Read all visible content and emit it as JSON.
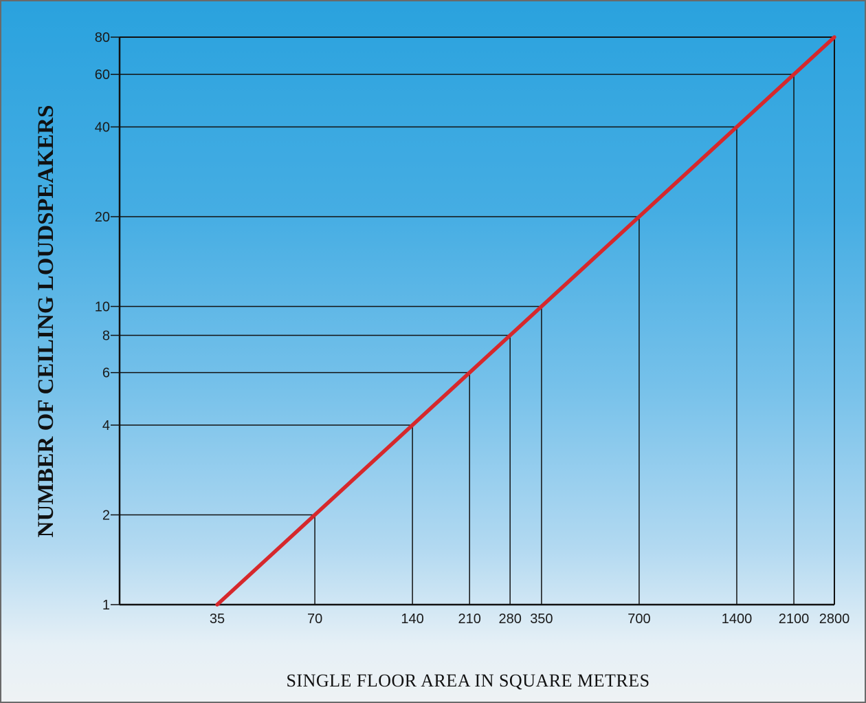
{
  "chart_data": {
    "type": "line",
    "xlabel": "SINGLE FLOOR AREA IN SQUARE METRES",
    "ylabel": "NUMBER OF CEILING LOUDSPEAKERS",
    "x_scale": "log",
    "y_scale": "log",
    "xlim": [
      17.5,
      2800
    ],
    "ylim": [
      1,
      80
    ],
    "x_ticks": [
      35,
      70,
      140,
      210,
      280,
      350,
      700,
      1400,
      2100,
      2800
    ],
    "x_tick_labels": [
      "35",
      "70",
      "140",
      "210",
      "280",
      "350",
      "700",
      "1400",
      "2100",
      "2800"
    ],
    "y_ticks": [
      1,
      2,
      4,
      6,
      8,
      10,
      20,
      40,
      60,
      80
    ],
    "y_tick_labels": [
      "1",
      "2",
      "4",
      "6",
      "8",
      "10",
      "20",
      "40",
      "60",
      "80"
    ],
    "grid": "reference lines from each tick to the curve",
    "series": [
      {
        "color": "#d6282c",
        "x": [
          35,
          70,
          140,
          210,
          280,
          350,
          700,
          1400,
          2100,
          2800
        ],
        "y": [
          1,
          2,
          4,
          6,
          8,
          10,
          20,
          40,
          60,
          80
        ]
      }
    ],
    "reference_points": [
      {
        "x": 70,
        "y": 2
      },
      {
        "x": 140,
        "y": 4
      },
      {
        "x": 210,
        "y": 6
      },
      {
        "x": 280,
        "y": 8
      },
      {
        "x": 350,
        "y": 10
      },
      {
        "x": 700,
        "y": 20
      },
      {
        "x": 1400,
        "y": 40
      },
      {
        "x": 2100,
        "y": 60
      },
      {
        "x": 2800,
        "y": 80
      }
    ]
  }
}
